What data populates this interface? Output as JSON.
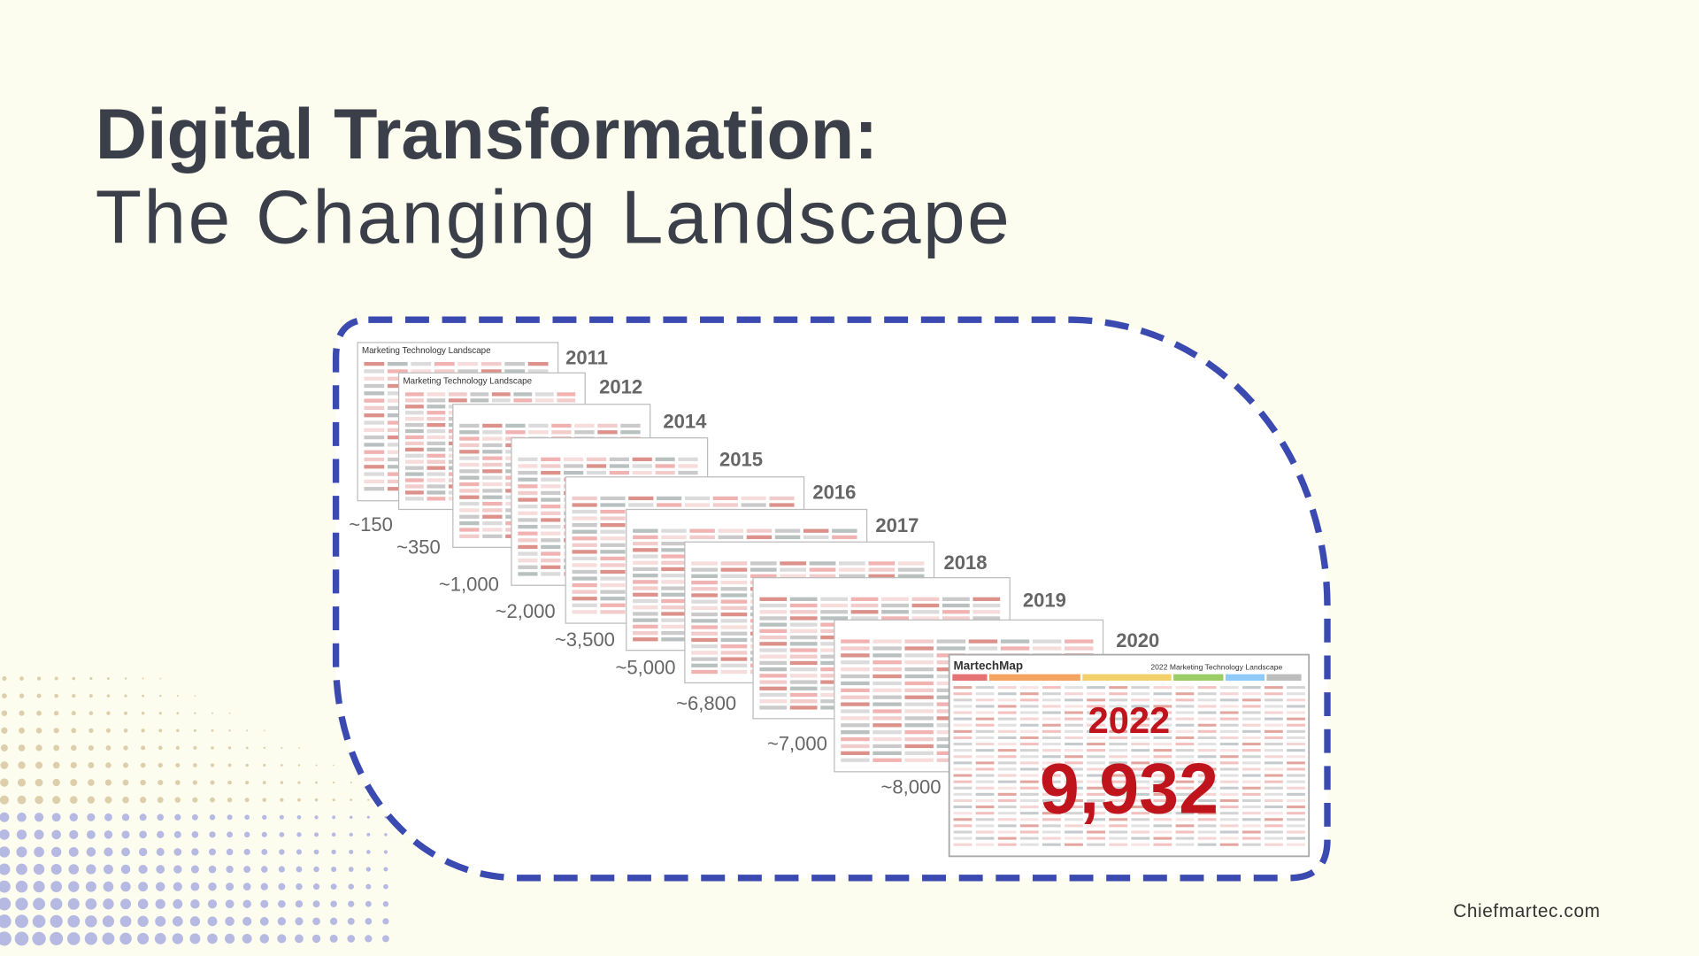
{
  "header": {
    "title": "Digital Transformation:",
    "subtitle": "The Changing Landscape"
  },
  "cards": [
    {
      "year": "2011",
      "count": "~150",
      "title": "Marketing Technology Landscape"
    },
    {
      "year": "2012",
      "count": "~350",
      "title": "Marketing Technology Landscape"
    },
    {
      "year": "2014",
      "count": "~1,000"
    },
    {
      "year": "2015",
      "count": "~2,000"
    },
    {
      "year": "2016",
      "count": "~3,500"
    },
    {
      "year": "2017",
      "count": "~5,000"
    },
    {
      "year": "2018",
      "count": "~6,800"
    },
    {
      "year": "2019",
      "count": "~7,000"
    },
    {
      "year": "2020",
      "count": "~8,000"
    }
  ],
  "featured": {
    "brand": "MartechMap",
    "title": "2022 Marketing Technology Landscape",
    "label": "2022",
    "count": "9,932"
  },
  "source": "Chiefmartec.com"
}
